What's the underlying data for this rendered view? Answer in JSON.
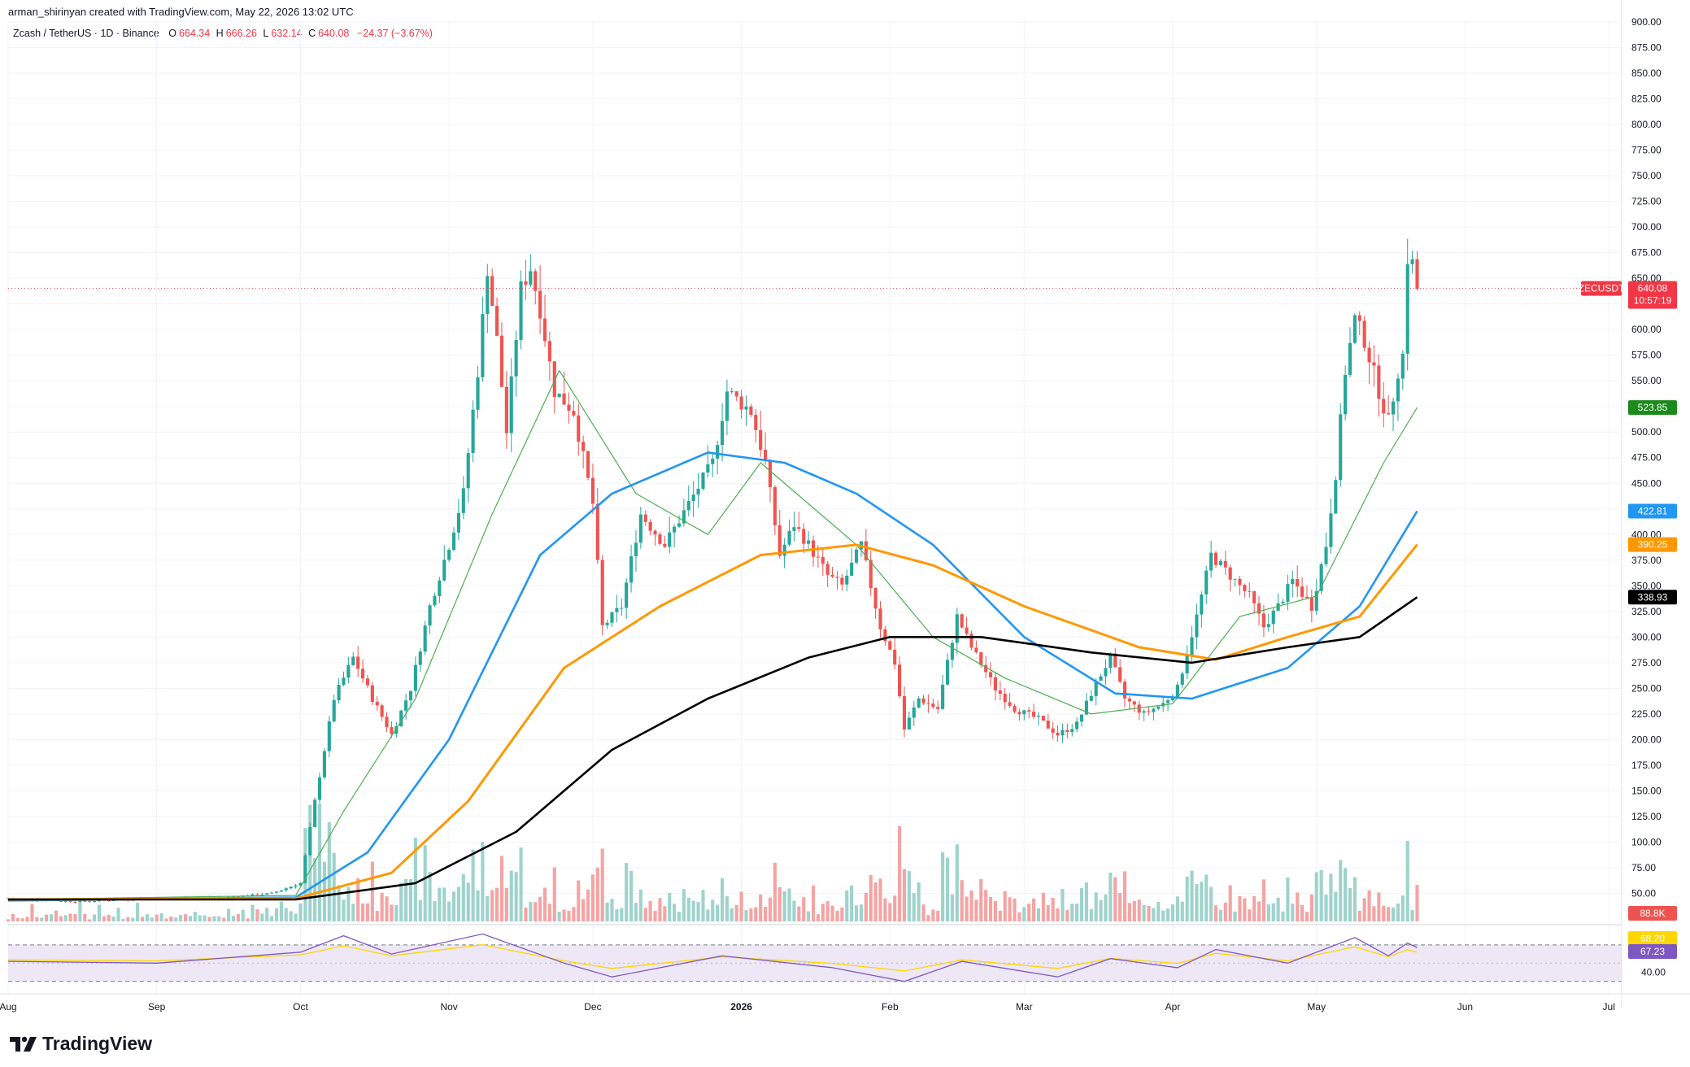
{
  "header": {
    "attribution": "arman_shirinyan created with TradingView.com, May 22, 2026 13:02 UTC",
    "symbol": "Zcash / TetherUS · 1D · Binance",
    "ohlc": {
      "open_label": "O",
      "open": "664.34",
      "high_label": "H",
      "high": "666.26",
      "low_label": "L",
      "low": "632.14",
      "close_label": "C",
      "close": "640.08",
      "change": "−24.37 (−3.67%)"
    }
  },
  "brand": {
    "name": "TradingView"
  },
  "colors": {
    "up": "#26a69a",
    "down": "#ef5350",
    "vol_up": "#9ed3cc",
    "vol_down": "#f5a3a3",
    "ma20": "#4caf50",
    "ma50": "#2196f3",
    "ma100": "#ff9800",
    "ma200": "#000000",
    "rsi_line": "#7e57c2",
    "rsi_ma": "#ffd600",
    "rsi_band": "#ede7f6",
    "price_line": "#f23645"
  },
  "chart_data": {
    "type": "candlestick",
    "symbol": "ZECUSDT",
    "timeframe": "1D",
    "x_range": [
      "2025-08-01",
      "2026-07-03"
    ],
    "x_ticks": [
      {
        "label": "Aug",
        "date": "2025-08-01"
      },
      {
        "label": "Sep",
        "date": "2025-09-01"
      },
      {
        "label": "Oct",
        "date": "2025-10-01"
      },
      {
        "label": "Nov",
        "date": "2025-11-01"
      },
      {
        "label": "Dec",
        "date": "2025-12-01"
      },
      {
        "label": "2026",
        "date": "2026-01-01"
      },
      {
        "label": "Feb",
        "date": "2026-02-01"
      },
      {
        "label": "Mar",
        "date": "2026-03-01"
      },
      {
        "label": "Apr",
        "date": "2026-04-01"
      },
      {
        "label": "May",
        "date": "2026-05-01"
      },
      {
        "label": "Jun",
        "date": "2026-06-01"
      },
      {
        "label": "Jul",
        "date": "2026-07-01"
      }
    ],
    "price_axis": {
      "range": [
        25,
        900
      ],
      "ticks": [
        "900.00",
        "875.00",
        "850.00",
        "825.00",
        "800.00",
        "775.00",
        "750.00",
        "725.00",
        "700.00",
        "675.00",
        "650.00",
        "625.00",
        "600.00",
        "575.00",
        "550.00",
        "525.00",
        "500.00",
        "475.00",
        "450.00",
        "425.00",
        "400.00",
        "375.00",
        "350.00",
        "325.00",
        "300.00",
        "275.00",
        "250.00",
        "225.00",
        "200.00",
        "175.00",
        "150.00",
        "125.00",
        "100.00",
        "75.00",
        "50.00"
      ]
    },
    "rsi_axis": {
      "range": [
        20,
        85
      ],
      "ticks": [
        "40.00"
      ],
      "band": [
        30,
        70
      ]
    },
    "price_path": [
      [
        "2025-08-01",
        45
      ],
      [
        "2025-08-15",
        42
      ],
      [
        "2025-08-31",
        45
      ],
      [
        "2025-09-15",
        46
      ],
      [
        "2025-09-25",
        50
      ],
      [
        "2025-10-01",
        60
      ],
      [
        "2025-10-04",
        140
      ],
      [
        "2025-10-08",
        240
      ],
      [
        "2025-10-12",
        280
      ],
      [
        "2025-10-16",
        240
      ],
      [
        "2025-10-20",
        205
      ],
      [
        "2025-10-24",
        250
      ],
      [
        "2025-10-28",
        330
      ],
      [
        "2025-11-01",
        390
      ],
      [
        "2025-11-04",
        440
      ],
      [
        "2025-11-07",
        560
      ],
      [
        "2025-11-09",
        660
      ],
      [
        "2025-11-11",
        590
      ],
      [
        "2025-11-13",
        500
      ],
      [
        "2025-11-16",
        640
      ],
      [
        "2025-11-18",
        660
      ],
      [
        "2025-11-20",
        620
      ],
      [
        "2025-11-23",
        540
      ],
      [
        "2025-11-27",
        520
      ],
      [
        "2025-12-01",
        430
      ],
      [
        "2025-12-03",
        310
      ],
      [
        "2025-12-07",
        330
      ],
      [
        "2025-12-11",
        420
      ],
      [
        "2025-12-16",
        390
      ],
      [
        "2025-12-21",
        430
      ],
      [
        "2025-12-26",
        470
      ],
      [
        "2025-12-29",
        540
      ],
      [
        "2026-01-03",
        520
      ],
      [
        "2026-01-06",
        470
      ],
      [
        "2026-01-09",
        380
      ],
      [
        "2026-01-12",
        410
      ],
      [
        "2026-01-15",
        390
      ],
      [
        "2026-01-19",
        360
      ],
      [
        "2026-01-22",
        350
      ],
      [
        "2026-01-26",
        390
      ],
      [
        "2026-01-30",
        310
      ],
      [
        "2026-02-02",
        275
      ],
      [
        "2026-02-04",
        210
      ],
      [
        "2026-02-07",
        240
      ],
      [
        "2026-02-11",
        230
      ],
      [
        "2026-02-15",
        320
      ],
      [
        "2026-02-18",
        290
      ],
      [
        "2026-02-23",
        250
      ],
      [
        "2026-02-27",
        230
      ],
      [
        "2026-03-04",
        220
      ],
      [
        "2026-03-08",
        205
      ],
      [
        "2026-03-12",
        215
      ],
      [
        "2026-03-16",
        255
      ],
      [
        "2026-03-19",
        280
      ],
      [
        "2026-03-22",
        240
      ],
      [
        "2026-03-26",
        225
      ],
      [
        "2026-03-30",
        235
      ],
      [
        "2026-04-02",
        250
      ],
      [
        "2026-04-06",
        320
      ],
      [
        "2026-04-09",
        380
      ],
      [
        "2026-04-13",
        360
      ],
      [
        "2026-04-17",
        340
      ],
      [
        "2026-04-20",
        310
      ],
      [
        "2026-04-23",
        330
      ],
      [
        "2026-04-26",
        355
      ],
      [
        "2026-04-30",
        330
      ],
      [
        "2026-05-03",
        390
      ],
      [
        "2026-05-05",
        460
      ],
      [
        "2026-05-07",
        560
      ],
      [
        "2026-05-09",
        610
      ],
      [
        "2026-05-11",
        590
      ],
      [
        "2026-05-14",
        540
      ],
      [
        "2026-05-16",
        510
      ],
      [
        "2026-05-18",
        560
      ],
      [
        "2026-05-19",
        575
      ],
      [
        "2026-05-20",
        670
      ],
      [
        "2026-05-21",
        664
      ],
      [
        "2026-05-22",
        640
      ]
    ],
    "series": [
      {
        "name": "ZECUSDT",
        "last": "640.08",
        "countdown": "10:57:19"
      },
      {
        "last": "523.85",
        "path": [
          [
            "2025-08-01",
            44
          ],
          [
            "2025-09-30",
            48
          ],
          [
            "2025-10-10",
            130
          ],
          [
            "2025-10-25",
            240
          ],
          [
            "2025-11-10",
            420
          ],
          [
            "2025-11-24",
            560
          ],
          [
            "2025-12-10",
            440
          ],
          [
            "2025-12-25",
            400
          ],
          [
            "2026-01-05",
            470
          ],
          [
            "2026-01-25",
            390
          ],
          [
            "2026-02-10",
            300
          ],
          [
            "2026-02-25",
            260
          ],
          [
            "2026-03-15",
            225
          ],
          [
            "2026-04-01",
            235
          ],
          [
            "2026-04-15",
            320
          ],
          [
            "2026-05-01",
            340
          ],
          [
            "2026-05-15",
            470
          ],
          [
            "2026-05-22",
            523.85
          ]
        ]
      },
      {
        "last": "422.81",
        "path": [
          [
            "2025-08-01",
            43
          ],
          [
            "2025-09-30",
            46
          ],
          [
            "2025-10-15",
            90
          ],
          [
            "2025-11-01",
            200
          ],
          [
            "2025-11-20",
            380
          ],
          [
            "2025-12-05",
            440
          ],
          [
            "2025-12-25",
            480
          ],
          [
            "2026-01-10",
            470
          ],
          [
            "2026-01-25",
            440
          ],
          [
            "2026-02-10",
            390
          ],
          [
            "2026-03-01",
            300
          ],
          [
            "2026-03-20",
            245
          ],
          [
            "2026-04-05",
            240
          ],
          [
            "2026-04-25",
            270
          ],
          [
            "2026-05-10",
            330
          ],
          [
            "2026-05-22",
            422.81
          ]
        ]
      },
      {
        "last": "390.25",
        "path": [
          [
            "2025-08-01",
            44
          ],
          [
            "2025-09-30",
            45
          ],
          [
            "2025-10-20",
            70
          ],
          [
            "2025-11-05",
            140
          ],
          [
            "2025-11-25",
            270
          ],
          [
            "2025-12-15",
            330
          ],
          [
            "2026-01-05",
            380
          ],
          [
            "2026-01-25",
            390
          ],
          [
            "2026-02-10",
            370
          ],
          [
            "2026-03-01",
            330
          ],
          [
            "2026-03-25",
            290
          ],
          [
            "2026-04-10",
            278
          ],
          [
            "2026-04-25",
            300
          ],
          [
            "2026-05-10",
            320
          ],
          [
            "2026-05-22",
            390.25
          ]
        ]
      },
      {
        "last": "338.93",
        "path": [
          [
            "2025-08-01",
            44
          ],
          [
            "2025-09-30",
            44
          ],
          [
            "2025-10-25",
            60
          ],
          [
            "2025-11-15",
            110
          ],
          [
            "2025-12-05",
            190
          ],
          [
            "2025-12-25",
            240
          ],
          [
            "2026-01-15",
            280
          ],
          [
            "2026-02-01",
            300
          ],
          [
            "2026-02-20",
            300
          ],
          [
            "2026-03-15",
            285
          ],
          [
            "2026-04-05",
            275
          ],
          [
            "2026-04-25",
            290
          ],
          [
            "2026-05-10",
            300
          ],
          [
            "2026-05-22",
            338.93
          ]
        ]
      }
    ],
    "volume": {
      "last": "88.8K"
    },
    "rsi": {
      "ma_last": "68.20",
      "last": "67.23",
      "path": [
        [
          "2025-08-01",
          52
        ],
        [
          "2025-09-01",
          50
        ],
        [
          "2025-10-01",
          62
        ],
        [
          "2025-10-10",
          80
        ],
        [
          "2025-10-20",
          60
        ],
        [
          "2025-11-08",
          82
        ],
        [
          "2025-11-25",
          50
        ],
        [
          "2025-12-05",
          35
        ],
        [
          "2025-12-28",
          58
        ],
        [
          "2026-01-20",
          45
        ],
        [
          "2026-02-04",
          30
        ],
        [
          "2026-02-16",
          52
        ],
        [
          "2026-03-08",
          35
        ],
        [
          "2026-03-19",
          55
        ],
        [
          "2026-04-02",
          45
        ],
        [
          "2026-04-10",
          65
        ],
        [
          "2026-04-25",
          50
        ],
        [
          "2026-05-09",
          78
        ],
        [
          "2026-05-16",
          58
        ],
        [
          "2026-05-20",
          72
        ],
        [
          "2026-05-22",
          67.23
        ]
      ]
    }
  }
}
